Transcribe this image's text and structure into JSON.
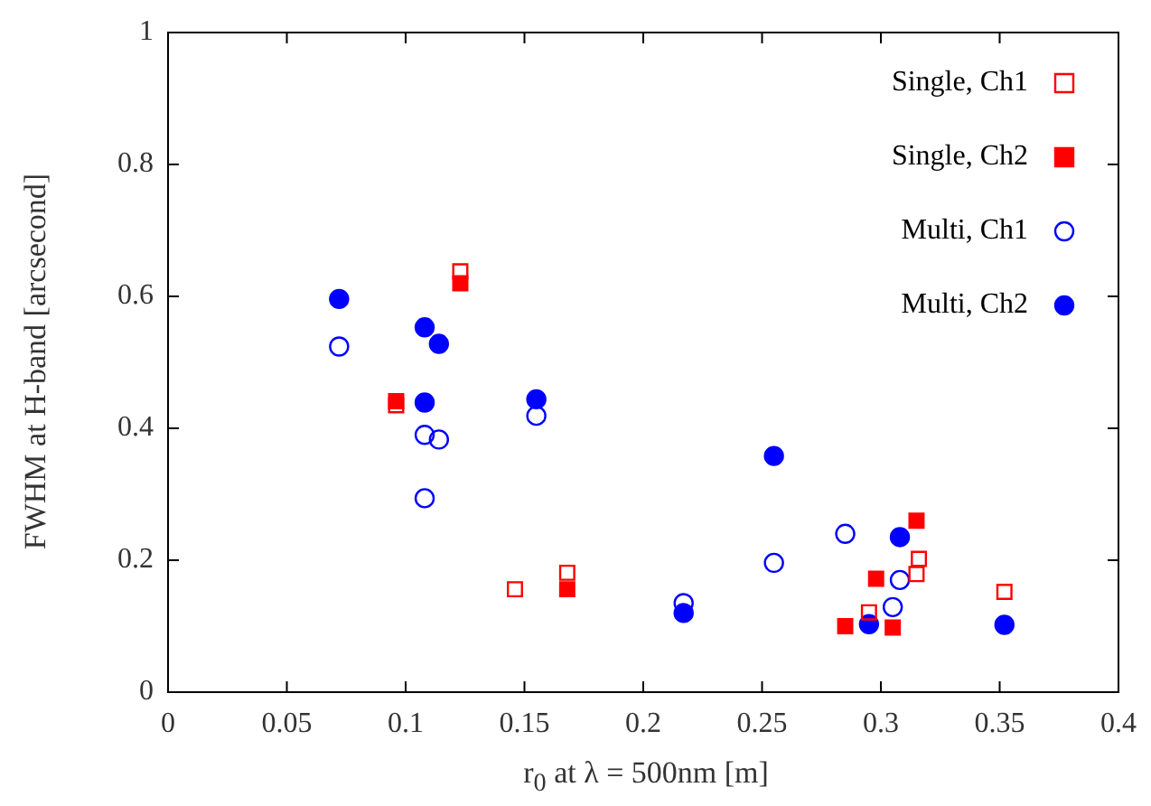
{
  "chart_data": {
    "type": "scatter",
    "xlabel": "r$_{0}$ at λ = 500nm [m]",
    "ylabel": "FWHM at H-band [arcsecond]",
    "xlim": [
      0,
      0.4
    ],
    "xticks": [
      0,
      0.05,
      0.1,
      0.15,
      0.2,
      0.25,
      0.3,
      0.35,
      0.4
    ],
    "ylim": [
      0,
      1
    ],
    "yticks": [
      0,
      0.2,
      0.4,
      0.6,
      0.8,
      1
    ],
    "grid": false,
    "legend": "top right",
    "series": [
      {
        "name": "Single, Ch1",
        "color": "#ff0000",
        "marker": "square",
        "x": [
          0.123,
          0.096,
          0.146,
          0.168,
          0.316,
          0.315,
          0.295,
          0.352
        ],
        "values": [
          0.638,
          0.435,
          0.156,
          0.181,
          0.202,
          0.179,
          0.121,
          0.152
        ]
      },
      {
        "name": "Single, Ch2",
        "color": "#ff0000",
        "marker": "square",
        "x": [
          0.123,
          0.096,
          0.168,
          0.315,
          0.298,
          0.285,
          0.305
        ],
        "values": [
          0.62,
          0.441,
          0.156,
          0.26,
          0.172,
          0.1,
          0.098
        ]
      },
      {
        "name": "Multi, Ch1",
        "color": "#0000ff",
        "marker": "circle",
        "x": [
          0.072,
          0.108,
          0.114,
          0.108,
          0.155,
          0.217,
          0.255,
          0.285,
          0.308,
          0.305
        ],
        "values": [
          0.524,
          0.39,
          0.383,
          0.294,
          0.419,
          0.135,
          0.196,
          0.24,
          0.17,
          0.129
        ]
      },
      {
        "name": "Multi, Ch2",
        "color": "#0000ff",
        "marker": "circle",
        "x": [
          0.072,
          0.108,
          0.114,
          0.108,
          0.155,
          0.255,
          0.308,
          0.217,
          0.295,
          0.352
        ],
        "values": [
          0.596,
          0.553,
          0.528,
          0.439,
          0.444,
          0.358,
          0.235,
          0.12,
          0.103,
          0.102
        ]
      }
    ]
  }
}
